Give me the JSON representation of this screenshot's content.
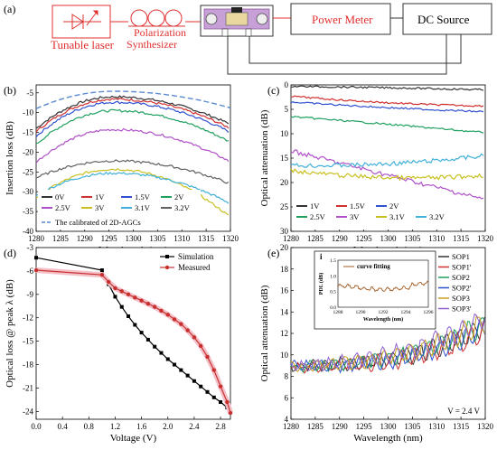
{
  "setup": {
    "label": "(a)",
    "boxes": {
      "laser": "Tunable laser",
      "polarization_line1": "Polarization",
      "polarization_line2": "Synthesizer",
      "power_meter": "Power Meter",
      "dc_source": "DC Source"
    },
    "colors": {
      "laser": "#e03030",
      "box_border": "#e03030",
      "chip": "#c8a0d8"
    }
  },
  "chart_data": [
    {
      "id": "b",
      "panel_label": "(b)",
      "type": "line",
      "xlabel": "Wavelength (nm)",
      "ylabel": "Insertion loss (dB)",
      "xlim": [
        1280,
        1320
      ],
      "ylim": [
        -40,
        -3
      ],
      "xticks": [
        1280,
        1285,
        1290,
        1295,
        1300,
        1305,
        1310,
        1315,
        1320
      ],
      "yticks": [
        -5,
        -10,
        -15,
        -20,
        -25,
        -30,
        -35,
        -40
      ],
      "legend": [
        "0V",
        "1V",
        "1.5V",
        "2V",
        "2.5V",
        "3V",
        "3.1V",
        "3.2V",
        "The calibrated of 2D-AGCs"
      ],
      "series": [
        {
          "name": "0V",
          "color": "#333333",
          "peak": -6.0,
          "edge_left": -14.0,
          "edge_right": -13.0
        },
        {
          "name": "1V",
          "color": "#d03030",
          "peak": -6.6,
          "edge_left": -14.8,
          "edge_right": -14.0
        },
        {
          "name": "1.5V",
          "color": "#3050d0",
          "peak": -7.4,
          "edge_left": -16.0,
          "edge_right": -15.0
        },
        {
          "name": "2V",
          "color": "#20a060",
          "peak": -9.5,
          "edge_left": -18.0,
          "edge_right": -17.5
        },
        {
          "name": "2.5V",
          "color": "#b050c8",
          "peak": -14.3,
          "edge_left": -22.5,
          "edge_right": -22.5
        },
        {
          "name": "3V",
          "color": "#c8c020",
          "peak": -24.3,
          "edge_left": -31.5,
          "edge_right": -36.5
        },
        {
          "name": "3.1V",
          "color": "#40b0d8",
          "peak": -25.3,
          "edge_left": -31.0,
          "edge_right": -33.0
        },
        {
          "name": "3.2V",
          "color": "#606060",
          "peak": -22.2,
          "edge_left": -26.5,
          "edge_right": -28.0
        },
        {
          "name": "The calibrated of 2D-AGCs",
          "color": "#5a8ad0",
          "peak": -4.6,
          "edge_left": -9.0,
          "edge_right": -8.8
        }
      ]
    },
    {
      "id": "c",
      "panel_label": "(c)",
      "type": "line",
      "xlabel": "Wavelength (nm)",
      "ylabel": "Optical attenuation (dB)",
      "xlim": [
        1280,
        1320
      ],
      "ylim": [
        30,
        0
      ],
      "xticks": [
        1280,
        1285,
        1290,
        1295,
        1300,
        1305,
        1310,
        1315,
        1320
      ],
      "yticks": [
        0,
        5,
        10,
        15,
        20,
        25,
        30
      ],
      "legend": [
        "1V",
        "1.5V",
        "2V",
        "2.5V",
        "3V",
        "3.1V",
        "3.2V"
      ],
      "series": [
        {
          "name": "1V",
          "color": "#333333",
          "y_left": 0.3,
          "y_mid": 0.5,
          "y_right": 1.0
        },
        {
          "name": "1.5V",
          "color": "#d03030",
          "y_left": 2.3,
          "y_mid": 4.0,
          "y_right": 4.3
        },
        {
          "name": "2V",
          "color": "#3050d0",
          "y_left": 3.5,
          "y_mid": 4.8,
          "y_right": 5.5
        },
        {
          "name": "2.5V",
          "color": "#20a060",
          "y_left": 6.5,
          "y_mid": 8.0,
          "y_right": 9.8
        },
        {
          "name": "3V",
          "color": "#b050c8",
          "y_left": 13.5,
          "y_mid": 18.5,
          "y_right": 23.5
        },
        {
          "name": "3.1V",
          "color": "#c8c020",
          "y_left": 17.5,
          "y_mid": 20.0,
          "y_right": 18.5
        },
        {
          "name": "3.2V",
          "color": "#40b0d8",
          "y_left": 16.5,
          "y_mid": 16.8,
          "y_right": 14.5
        }
      ]
    },
    {
      "id": "d",
      "panel_label": "(d)",
      "type": "line",
      "xlabel": "Voltage (V)",
      "ylabel": "Optical loss @ peak λ (dB)",
      "xlim": [
        0,
        2.95
      ],
      "ylim": [
        -25,
        -3
      ],
      "xticks": [
        0.0,
        0.4,
        0.8,
        1.2,
        1.6,
        2.0,
        2.4,
        2.8
      ],
      "yticks": [
        -3,
        -6,
        -9,
        -12,
        -15,
        -18,
        -21,
        -24
      ],
      "legend": [
        "Simulation",
        "Measured"
      ],
      "series": [
        {
          "name": "Simulation",
          "color": "#000000",
          "marker": "square",
          "x": [
            0.0,
            1.0,
            1.1,
            1.2,
            1.3,
            1.4,
            1.5,
            1.6,
            1.7,
            1.8,
            1.9,
            2.0,
            2.1,
            2.2,
            2.3,
            2.4,
            2.5,
            2.6,
            2.7,
            2.8,
            2.9,
            2.95
          ],
          "y": [
            -4.3,
            -5.9,
            -7.7,
            -9.3,
            -10.6,
            -11.8,
            -12.9,
            -13.9,
            -14.8,
            -15.7,
            -16.5,
            -17.3,
            -18.0,
            -18.7,
            -19.4,
            -20.1,
            -20.8,
            -21.5,
            -22.2,
            -22.8,
            -23.5,
            -24.0
          ]
        },
        {
          "name": "Measured",
          "color": "#c83030",
          "marker": "circle",
          "x": [
            0.0,
            1.0,
            1.1,
            1.2,
            1.3,
            1.4,
            1.5,
            1.6,
            1.7,
            1.8,
            1.9,
            2.0,
            2.1,
            2.2,
            2.3,
            2.4,
            2.5,
            2.6,
            2.7,
            2.8,
            2.9,
            2.95
          ],
          "y": [
            -5.9,
            -6.5,
            -7.4,
            -8.2,
            -8.6,
            -9.0,
            -9.4,
            -9.8,
            -10.2,
            -10.6,
            -11.1,
            -11.6,
            -12.2,
            -12.8,
            -13.6,
            -14.5,
            -15.6,
            -17.0,
            -18.7,
            -20.8,
            -22.8,
            -24.2
          ]
        }
      ]
    },
    {
      "id": "e",
      "panel_label": "(e)",
      "type": "line",
      "xlabel": "Wavelength (nm)",
      "ylabel": "Optical attenuation (dB)",
      "xlim": [
        1280,
        1320
      ],
      "ylim": [
        4,
        20
      ],
      "xticks": [
        1280,
        1285,
        1290,
        1295,
        1300,
        1305,
        1310,
        1315,
        1320
      ],
      "yticks": [
        4,
        6,
        8,
        10,
        12,
        14,
        16,
        18,
        20
      ],
      "legend": [
        "SOP1",
        "SOP1'",
        "SOP2",
        "SOP2'",
        "SOP3",
        "SOP3'"
      ],
      "annotation": "V = 2.4 V",
      "series": [
        {
          "name": "SOP1",
          "color": "#333333",
          "offset": 0.0
        },
        {
          "name": "SOP1'",
          "color": "#d03030",
          "offset": -0.4
        },
        {
          "name": "SOP2",
          "color": "#20a060",
          "offset": 0.2
        },
        {
          "name": "SOP2'",
          "color": "#3050d0",
          "offset": -0.2
        },
        {
          "name": "SOP3",
          "color": "#c8a020",
          "offset": 0.4
        },
        {
          "name": "SOP3'",
          "color": "#9060d0",
          "offset": 0.8
        }
      ],
      "inset": {
        "label": "i",
        "legend": "curve fitting",
        "color": "#a05a20",
        "xlabel": "Wavelength (nm)",
        "ylabel": "PDL (dB)",
        "xlim": [
          1288,
          1296
        ],
        "ylim": [
          0.0,
          1.5
        ],
        "xticks": [
          1288,
          1290,
          1292,
          1294,
          1296
        ],
        "yticks": [
          0.0,
          0.5,
          1.0,
          1.5
        ]
      }
    }
  ]
}
